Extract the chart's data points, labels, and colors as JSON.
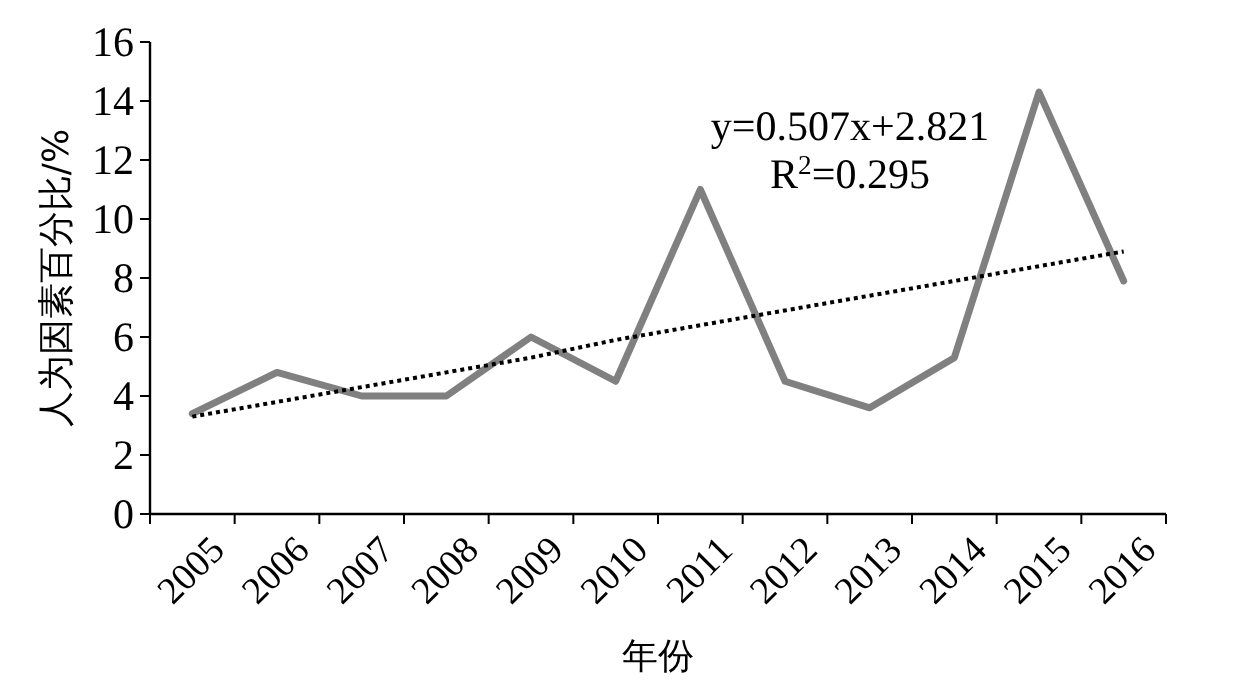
{
  "chart_data": {
    "type": "line",
    "xlabel": "年份",
    "ylabel": "人为因素百分比/%",
    "categories": [
      "2005",
      "2006",
      "2007",
      "2008",
      "2009",
      "2010",
      "2011",
      "2012",
      "2013",
      "2014",
      "2015",
      "2016"
    ],
    "series": [
      {
        "color": "#808080",
        "values": [
          3.4,
          4.8,
          4.0,
          4.0,
          6.0,
          4.5,
          11.0,
          4.5,
          3.6,
          5.3,
          14.3,
          7.9
        ]
      },
      {
        "color": "#000000",
        "line_style": "dotted",
        "values": [
          3.3,
          3.8,
          4.3,
          4.8,
          5.3,
          5.9,
          6.4,
          6.9,
          7.4,
          7.9,
          8.4,
          8.9
        ]
      }
    ],
    "annotations": [
      {
        "text": "y=0.507x+2.821"
      },
      {
        "text": "R$^{2}$=0.295"
      }
    ],
    "ylim": [
      0,
      16
    ],
    "yticks": [
      0,
      2,
      4,
      6,
      8,
      10,
      12,
      14,
      16
    ],
    "grid": false,
    "marker": "none"
  }
}
